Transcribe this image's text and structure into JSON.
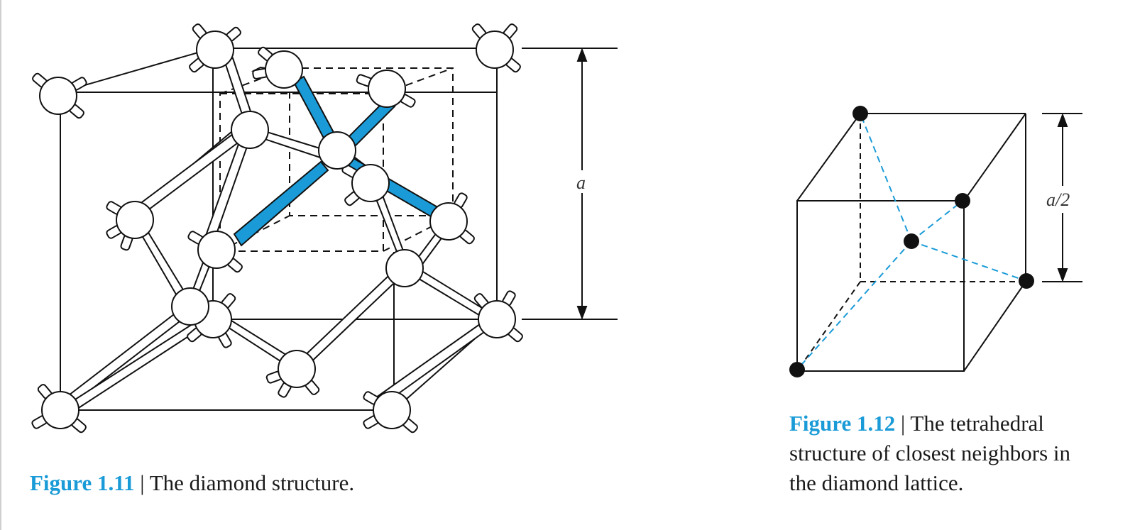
{
  "figure_11": {
    "number": "Figure 1.11",
    "separator": "|",
    "caption": "The diamond structure.",
    "dimension_label": "a"
  },
  "figure_12": {
    "number": "Figure 1.12",
    "separator": "|",
    "caption": "The tetrahedral structure of closest neighbors in the diamond lattice.",
    "dimension_label": "a/2"
  },
  "colors": {
    "accent": "#1a9bd7",
    "line": "#111111",
    "bond_highlight": "#1a9bd7"
  }
}
